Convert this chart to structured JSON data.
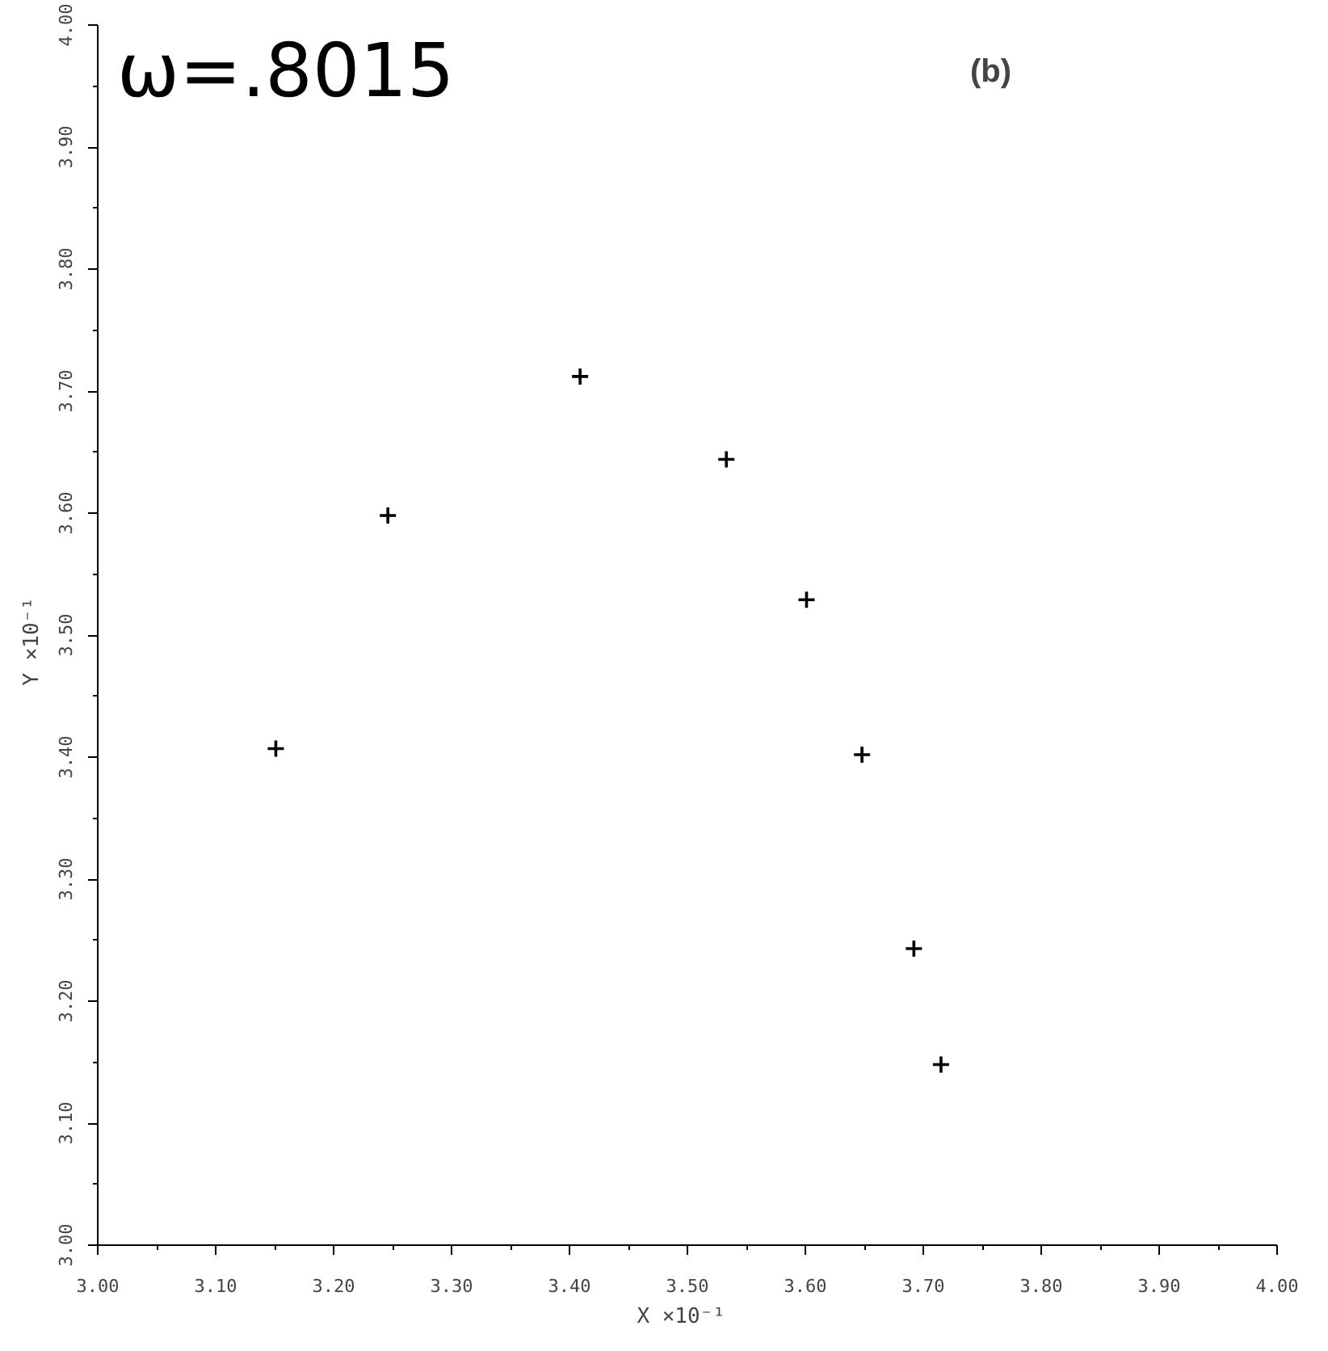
{
  "chart_data": {
    "type": "scatter",
    "title": "ω=.8015",
    "annotations": [
      "(b)"
    ],
    "xlabel": "X  ×10⁻¹",
    "ylabel": "Y  ×10⁻¹",
    "x": [
      3.151,
      3.246,
      3.409,
      3.533,
      3.601,
      3.648,
      3.692,
      3.715
    ],
    "series": [
      {
        "color": "#000000",
        "values": [
          3.407,
          3.598,
          3.712,
          3.644,
          3.529,
          3.402,
          3.243,
          3.148
        ]
      }
    ],
    "marker": "cross",
    "grid": false,
    "xlim": [
      3.0,
      4.0
    ],
    "ylim": [
      3.0,
      4.0
    ],
    "xticks": [
      {
        "value": 3.0,
        "label": "3.00"
      },
      {
        "value": 3.1,
        "label": "3.10"
      },
      {
        "value": 3.2,
        "label": "3.20"
      },
      {
        "value": 3.3,
        "label": "3.30"
      },
      {
        "value": 3.4,
        "label": "3.40"
      },
      {
        "value": 3.5,
        "label": "3.50"
      },
      {
        "value": 3.6,
        "label": "3.60"
      },
      {
        "value": 3.7,
        "label": "3.70"
      },
      {
        "value": 3.8,
        "label": "3.80"
      },
      {
        "value": 3.9,
        "label": "3.90"
      },
      {
        "value": 4.0,
        "label": "4.00"
      }
    ],
    "yticks": [
      {
        "value": 3.0,
        "label": "3.00"
      },
      {
        "value": 3.1,
        "label": "3.10"
      },
      {
        "value": 3.2,
        "label": "3.20"
      },
      {
        "value": 3.3,
        "label": "3.30"
      },
      {
        "value": 3.4,
        "label": "3.40"
      },
      {
        "value": 3.5,
        "label": "3.50"
      },
      {
        "value": 3.6,
        "label": "3.60"
      },
      {
        "value": 3.7,
        "label": "3.70"
      },
      {
        "value": 3.8,
        "label": "3.80"
      },
      {
        "value": 3.9,
        "label": "3.90"
      },
      {
        "value": 4.0,
        "label": "4.00"
      }
    ]
  }
}
